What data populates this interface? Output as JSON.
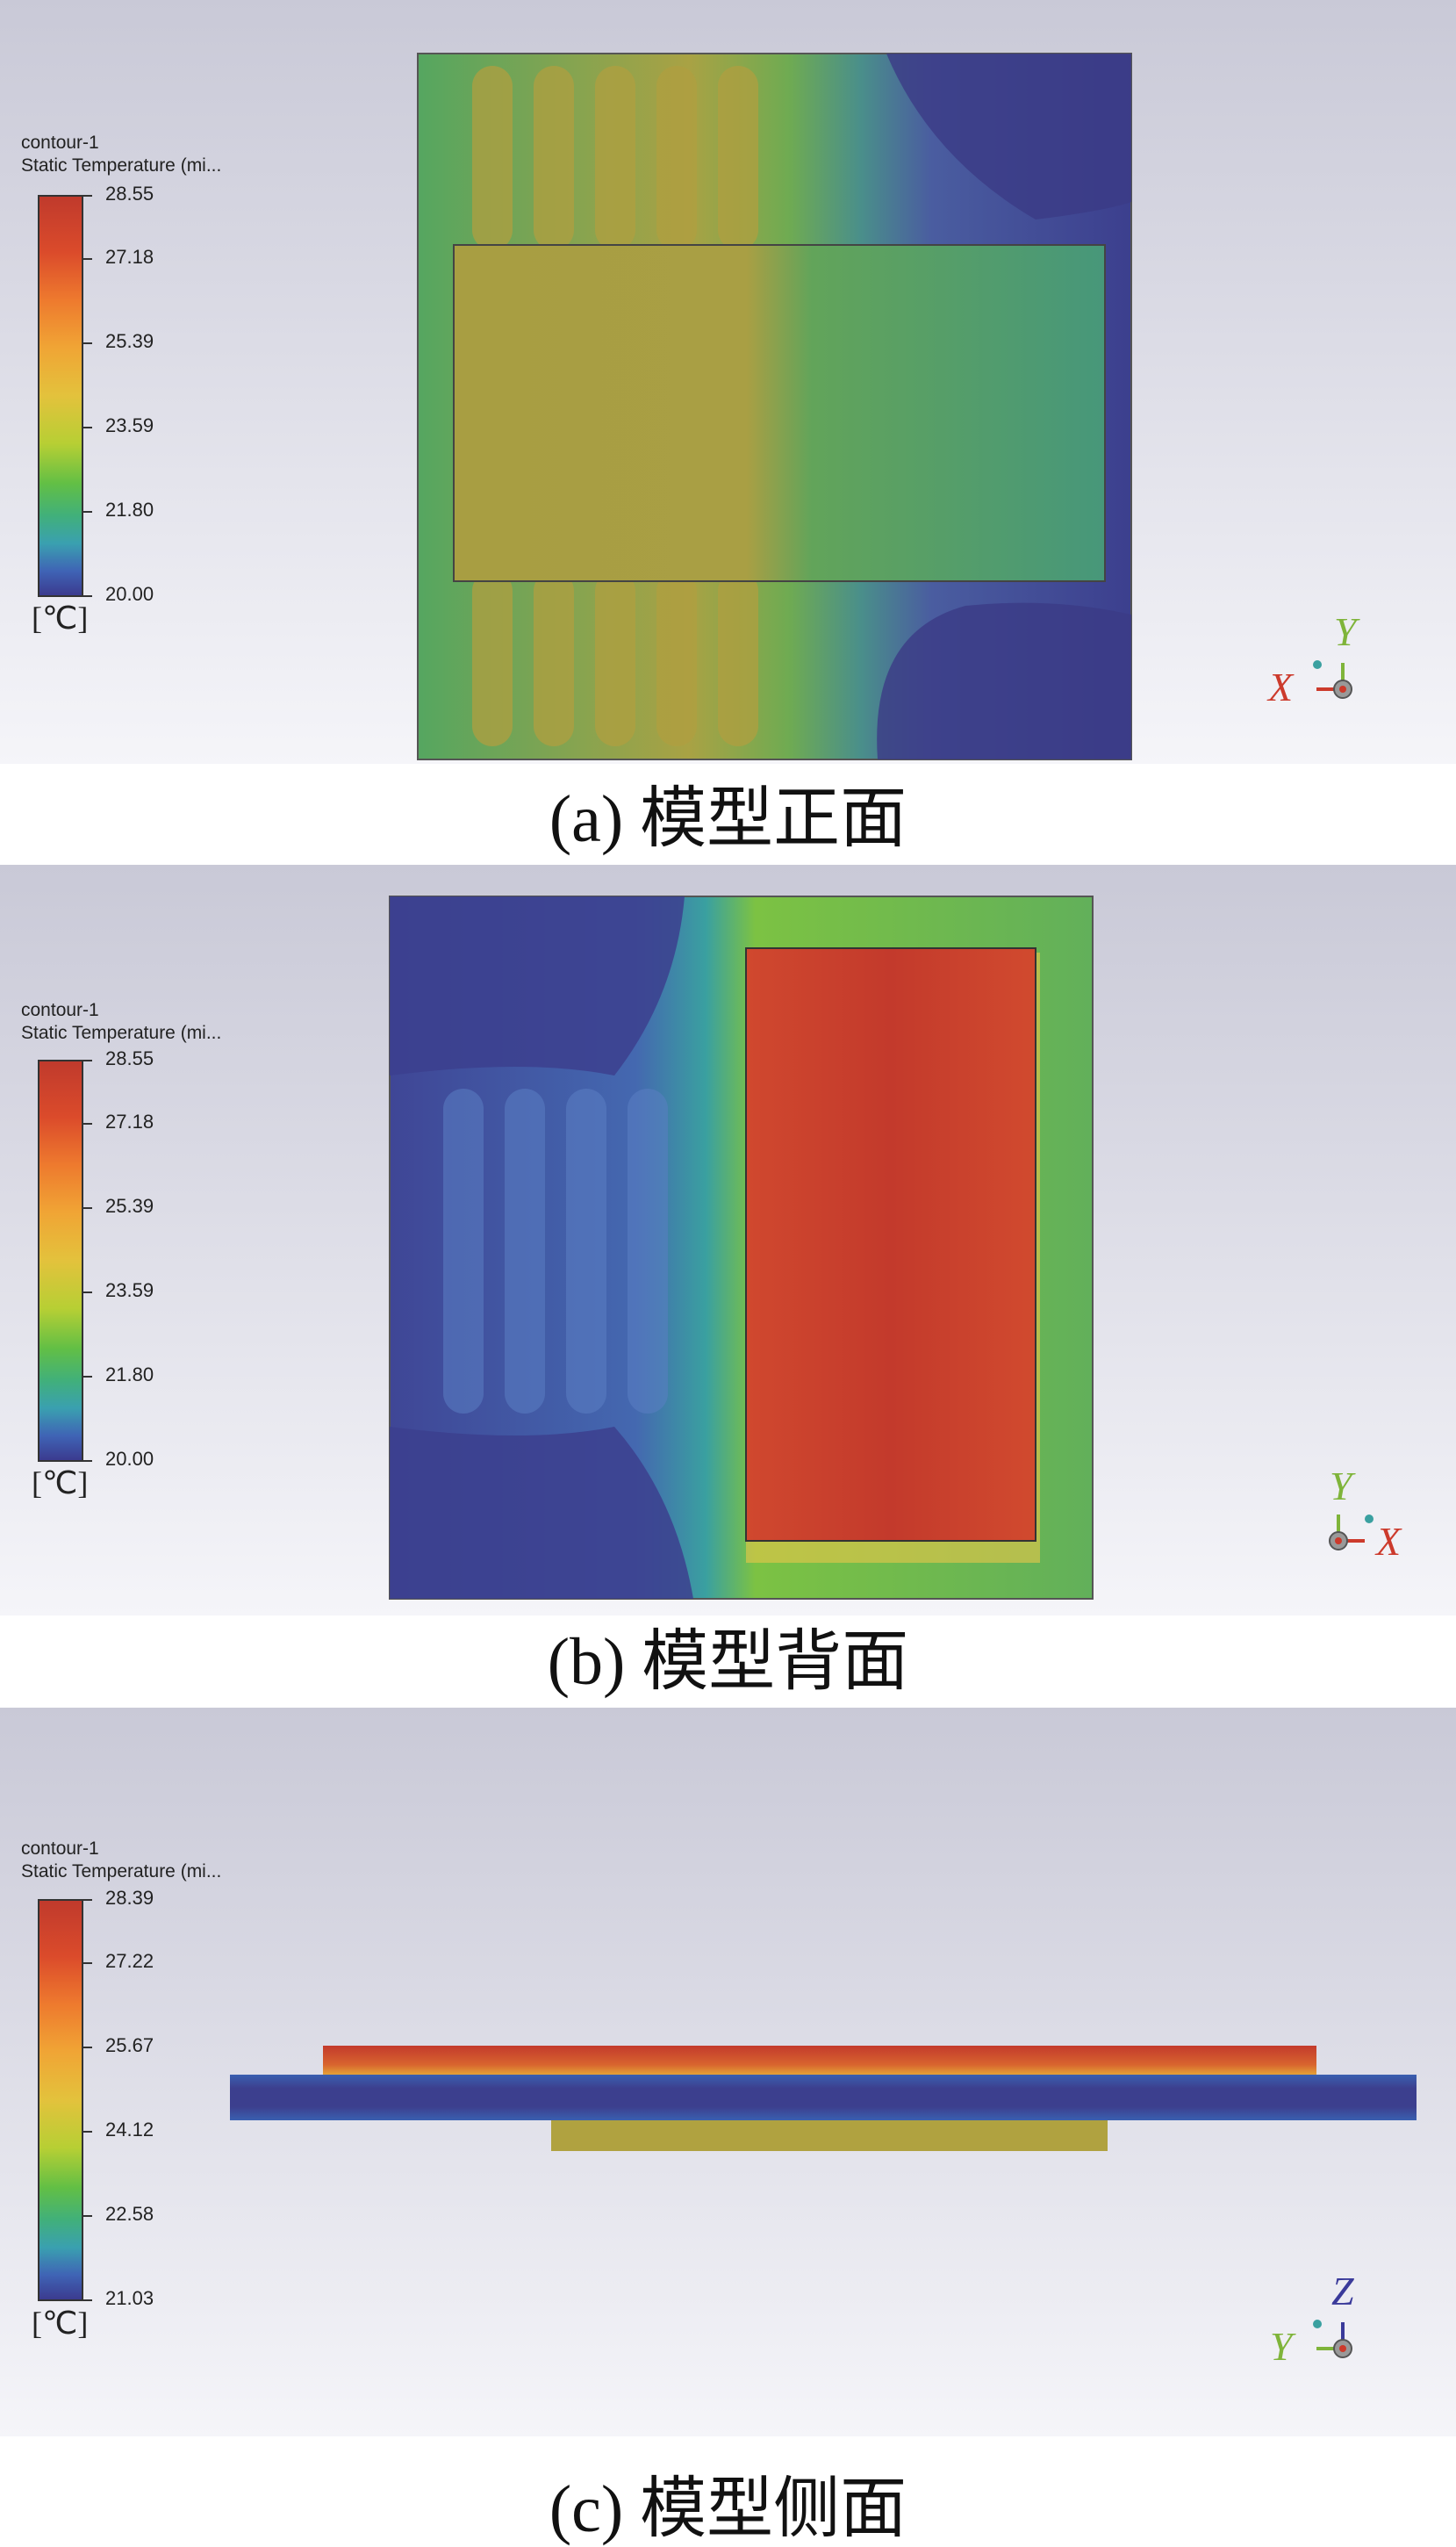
{
  "panels": [
    {
      "id": "a",
      "caption": "(a)  模型正面",
      "legend": {
        "title_line1": "contour-1",
        "title_line2": "Static Temperature (mi...",
        "ticks": [
          "28.55",
          "27.18",
          "25.39",
          "23.59",
          "21.80",
          "20.00"
        ],
        "unit": "[℃]"
      },
      "axes": {
        "vertical": "Y",
        "horizontal": "X",
        "vertical_color": "#7fb43a",
        "horizontal_color": "#cc3a2c"
      }
    },
    {
      "id": "b",
      "caption": "(b)  模型背面",
      "legend": {
        "title_line1": "contour-1",
        "title_line2": "Static Temperature (mi...",
        "ticks": [
          "28.55",
          "27.18",
          "25.39",
          "23.59",
          "21.80",
          "20.00"
        ],
        "unit": "[℃]"
      },
      "axes": {
        "vertical": "Y",
        "horizontal": "X",
        "vertical_color": "#7fb43a",
        "horizontal_color": "#cc3a2c"
      }
    },
    {
      "id": "c",
      "caption": "(c)  模型侧面",
      "legend": {
        "title_line1": "contour-1",
        "title_line2": "Static Temperature (mi...",
        "ticks": [
          "28.39",
          "27.22",
          "25.67",
          "24.12",
          "22.58",
          "21.03"
        ],
        "unit": "[℃]"
      },
      "axes": {
        "vertical": "Z",
        "horizontal": "Y",
        "vertical_color": "#3a3a9a",
        "horizontal_color": "#7fb43a"
      }
    }
  ],
  "colors": {
    "hot": "#c63a2e",
    "warm_yellow": "#b9a53a",
    "mid_green": "#4a9a6e",
    "cool_blue": "#3c3f8e"
  }
}
